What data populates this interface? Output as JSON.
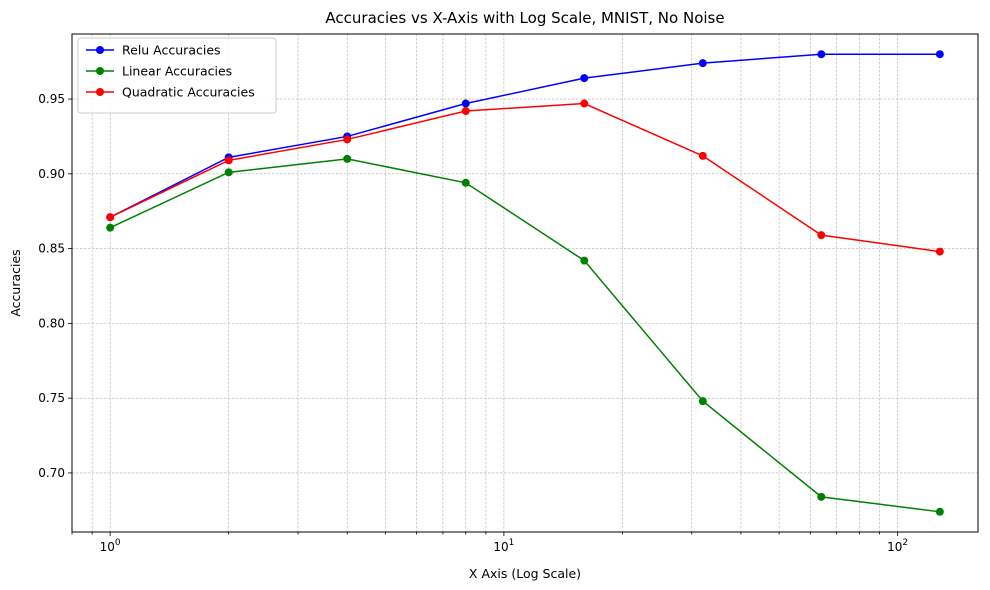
{
  "chart_data": {
    "type": "line",
    "title": "Accuracies vs X-Axis with Log Scale, MNIST, No Noise",
    "xlabel": "X Axis (Log Scale)",
    "ylabel": "Accuracies",
    "xscale": "log",
    "xlim": [
      0.8,
      160
    ],
    "ylim": [
      0.6605,
      0.9935
    ],
    "grid": "both-major-and-minor-dashed",
    "legend_position": "top-left",
    "x": [
      1,
      2,
      4,
      8,
      16,
      32,
      64,
      128
    ],
    "x_ticks": [
      {
        "value": 1,
        "base": "10",
        "exp": "0"
      },
      {
        "value": 10,
        "base": "10",
        "exp": "1"
      },
      {
        "value": 100,
        "base": "10",
        "exp": "2"
      }
    ],
    "y_ticks": [
      0.7,
      0.75,
      0.8,
      0.85,
      0.9,
      0.95
    ],
    "y_tick_labels": [
      "0.70",
      "0.75",
      "0.80",
      "0.85",
      "0.90",
      "0.95"
    ],
    "series": [
      {
        "name": "Relu Accuracies",
        "color": "#0000ff",
        "marker": "circle",
        "values": [
          0.871,
          0.911,
          0.925,
          0.947,
          0.964,
          0.974,
          0.98,
          0.98
        ]
      },
      {
        "name": "Linear Accuracies",
        "color": "#008000",
        "marker": "circle",
        "values": [
          0.864,
          0.901,
          0.91,
          0.894,
          0.842,
          0.748,
          0.684,
          0.674
        ]
      },
      {
        "name": "Quadratic Accuracies",
        "color": "#ff0000",
        "marker": "circle",
        "values": [
          0.871,
          0.909,
          0.923,
          0.942,
          0.947,
          0.912,
          0.859,
          0.848
        ]
      }
    ]
  }
}
